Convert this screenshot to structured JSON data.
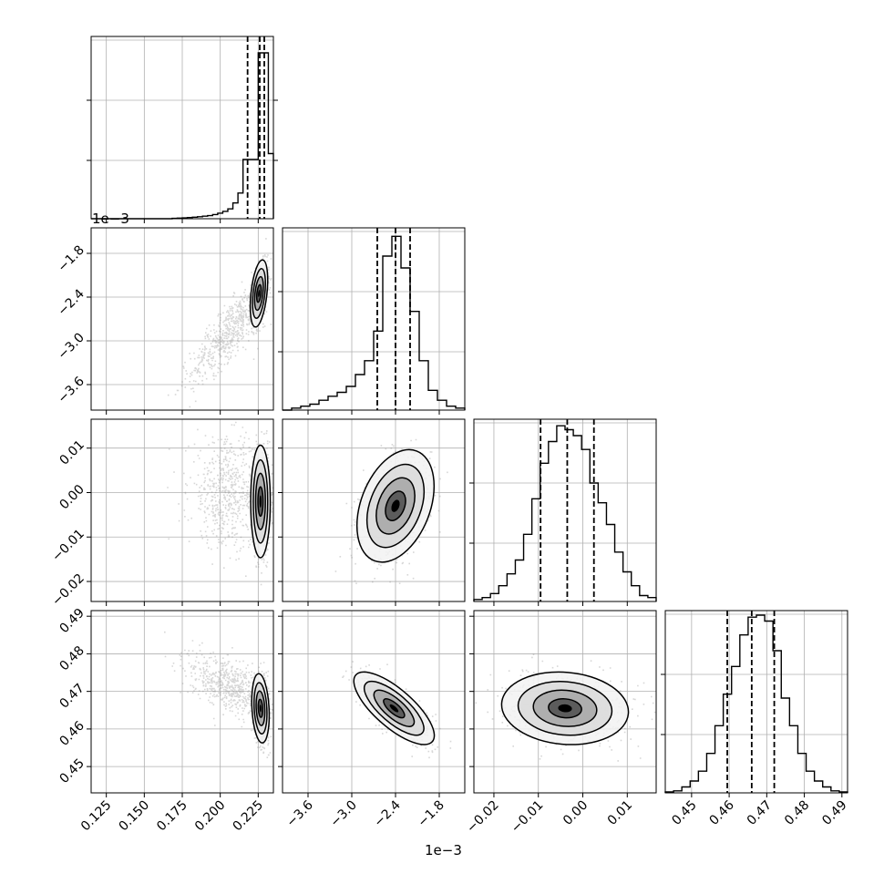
{
  "figure": {
    "offset_texts": [
      "1e−3",
      "1e−3"
    ]
  },
  "chart_data": {
    "type": "corner",
    "parameters": [
      {
        "range": [
          0.115,
          0.235
        ],
        "ticks": [
          0.125,
          0.15,
          0.175,
          0.2,
          0.225
        ],
        "tick_labels": [
          "0.125",
          "0.150",
          "0.175",
          "0.200",
          "0.225"
        ],
        "quantiles": [
          0.218,
          0.226,
          0.229
        ],
        "histogram": [
          0,
          0,
          0,
          0,
          0,
          0,
          0,
          0,
          0,
          0,
          0,
          0,
          0,
          0,
          0,
          0,
          0.002,
          0.003,
          0.004,
          0.006,
          0.008,
          0.01,
          0.013,
          0.016,
          0.021,
          0.028,
          0.037,
          0.05,
          0.08,
          0.13,
          0.3,
          0.3,
          0.3,
          0.84,
          0.84,
          0.33
        ]
      },
      {
        "range": [
          -3.95,
          -1.45
        ],
        "ticks": [
          -3.6,
          -3.0,
          -2.4,
          -1.8
        ],
        "tick_labels": [
          "−3.6",
          "−3.0",
          "−2.4",
          "−1.8"
        ],
        "quantiles": [
          -2.65,
          -2.4,
          -2.2
        ],
        "histogram": [
          0,
          0.01,
          0.02,
          0.03,
          0.05,
          0.07,
          0.09,
          0.12,
          0.18,
          0.25,
          0.4,
          0.78,
          0.88,
          0.72,
          0.5,
          0.25,
          0.1,
          0.05,
          0.02,
          0.01
        ]
      },
      {
        "range": [
          -0.0245,
          0.0165
        ],
        "ticks": [
          -0.02,
          -0.01,
          0.0,
          0.01
        ],
        "tick_labels": [
          "−0.02",
          "−0.01",
          "0.00",
          "0.01"
        ],
        "quantiles": [
          -0.0095,
          -0.0035,
          0.0025
        ],
        "histogram": [
          0.01,
          0.02,
          0.04,
          0.08,
          0.14,
          0.21,
          0.34,
          0.52,
          0.7,
          0.81,
          0.89,
          0.87,
          0.84,
          0.77,
          0.6,
          0.5,
          0.39,
          0.25,
          0.15,
          0.08,
          0.03,
          0.02
        ]
      },
      {
        "range": [
          0.443,
          0.4915
        ],
        "ticks": [
          0.45,
          0.46,
          0.47,
          0.48,
          0.49
        ],
        "tick_labels": [
          "0.45",
          "0.46",
          "0.47",
          "0.48",
          "0.49"
        ],
        "quantiles": [
          0.4595,
          0.466,
          0.472
        ],
        "histogram": [
          0.005,
          0.01,
          0.03,
          0.06,
          0.11,
          0.2,
          0.34,
          0.5,
          0.64,
          0.8,
          0.89,
          0.9,
          0.87,
          0.72,
          0.48,
          0.34,
          0.2,
          0.11,
          0.06,
          0.03,
          0.01,
          0.005
        ]
      }
    ],
    "pairs": [
      {
        "row": 1,
        "col": 0,
        "center": [
          0.2255,
          -2.35
        ],
        "sd": [
          0.0025,
          0.2
        ],
        "rho": 0.4,
        "tail": {
          "center": [
            0.206,
            -2.85
          ],
          "sd": [
            0.013,
            0.35
          ],
          "rho": 0.85
        }
      },
      {
        "row": 2,
        "col": 0,
        "center": [
          0.2265,
          -0.002
        ],
        "sd": [
          0.0028,
          0.0055
        ],
        "rho": 0.0,
        "tail": {
          "center": [
            0.205,
            0.0
          ],
          "sd": [
            0.013,
            0.006
          ],
          "rho": 0.0
        }
      },
      {
        "row": 2,
        "col": 1,
        "center": [
          -2.4,
          -0.003
        ],
        "sd": [
          0.23,
          0.0055
        ],
        "rho": 0.35
      },
      {
        "row": 3,
        "col": 0,
        "center": [
          0.2265,
          0.4655
        ],
        "sd": [
          0.0025,
          0.004
        ],
        "rho": -0.2,
        "tail": {
          "center": [
            0.205,
            0.472
          ],
          "sd": [
            0.013,
            0.004
          ],
          "rho": -0.5
        }
      },
      {
        "row": 3,
        "col": 1,
        "center": [
          -2.42,
          0.4655
        ],
        "sd": [
          0.24,
          0.0042
        ],
        "rho": -0.75
      },
      {
        "row": 3,
        "col": 2,
        "center": [
          -0.004,
          0.4655
        ],
        "sd": [
          0.0062,
          0.0042
        ],
        "rho": -0.1
      }
    ],
    "grid": true,
    "colors": {
      "quantile": "#000000",
      "scatter": "#8c8c8c",
      "density": "#000000",
      "grid": "#b0b0b0"
    }
  }
}
